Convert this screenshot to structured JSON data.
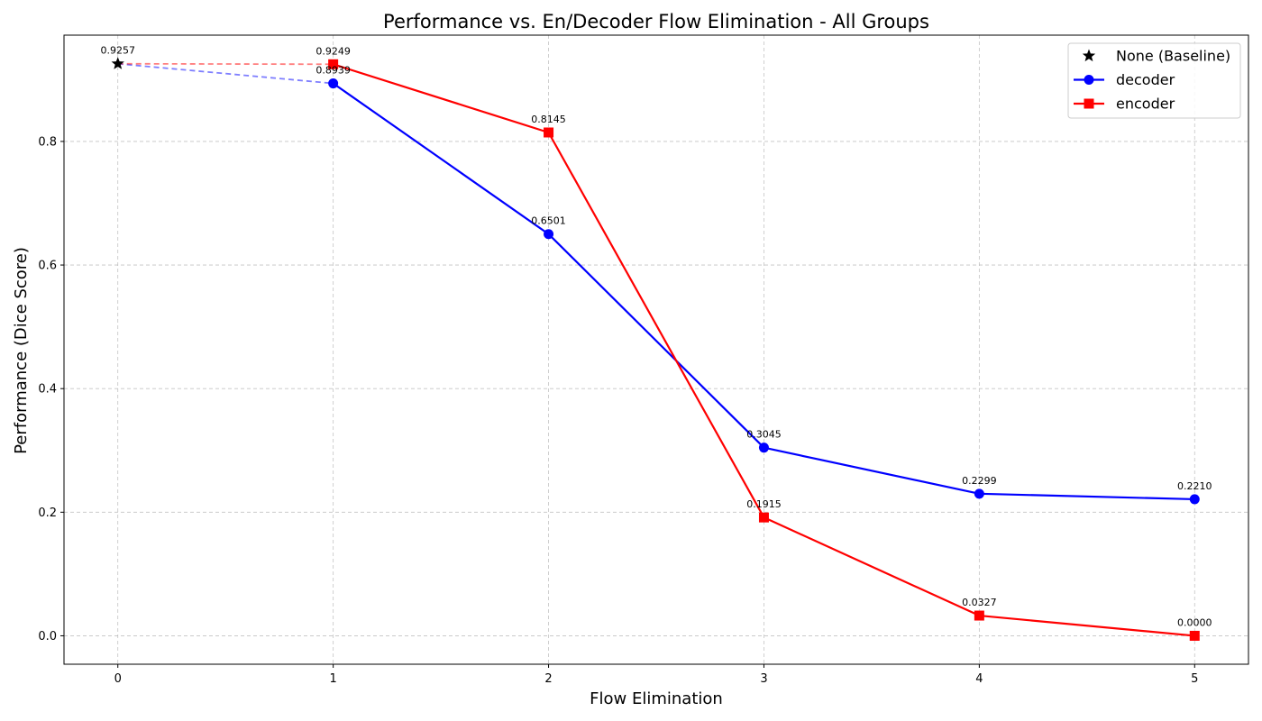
{
  "chart_data": {
    "type": "line",
    "title": "Performance vs. En/Decoder Flow Elimination - All Groups",
    "xlabel": "Flow Elimination",
    "ylabel": "Performance (Dice Score)",
    "xlim": [
      -0.25,
      5.25
    ],
    "ylim": [
      -0.046,
      0.972
    ],
    "xticks": [
      0,
      1,
      2,
      3,
      4,
      5
    ],
    "xtick_labels": [
      "0",
      "1",
      "2",
      "3",
      "4",
      "5"
    ],
    "yticks": [
      0.0,
      0.2,
      0.4,
      0.6,
      0.8
    ],
    "ytick_labels": [
      "0.0",
      "0.2",
      "0.4",
      "0.6",
      "0.8"
    ],
    "grid": true,
    "legend_position": "top-right",
    "baseline": {
      "name": "None (Baseline)",
      "x": 0,
      "y": 0.9257,
      "label": "0.9257",
      "marker": "star",
      "color": "#000000"
    },
    "series": [
      {
        "name": "decoder",
        "color": "#0000ff",
        "marker": "circle",
        "x": [
          1,
          2,
          3,
          4,
          5
        ],
        "values": [
          0.8939,
          0.6501,
          0.3045,
          0.2299,
          0.221
        ],
        "labels": [
          "0.8939",
          "0.6501",
          "0.3045",
          "0.2299",
          "0.2210"
        ]
      },
      {
        "name": "encoder",
        "color": "#ff0000",
        "marker": "square",
        "x": [
          1,
          2,
          3,
          4,
          5
        ],
        "values": [
          0.9249,
          0.8145,
          0.1915,
          0.0327,
          0.0
        ],
        "labels": [
          "0.9249",
          "0.8145",
          "0.1915",
          "0.0327",
          "0.0000"
        ]
      }
    ]
  }
}
